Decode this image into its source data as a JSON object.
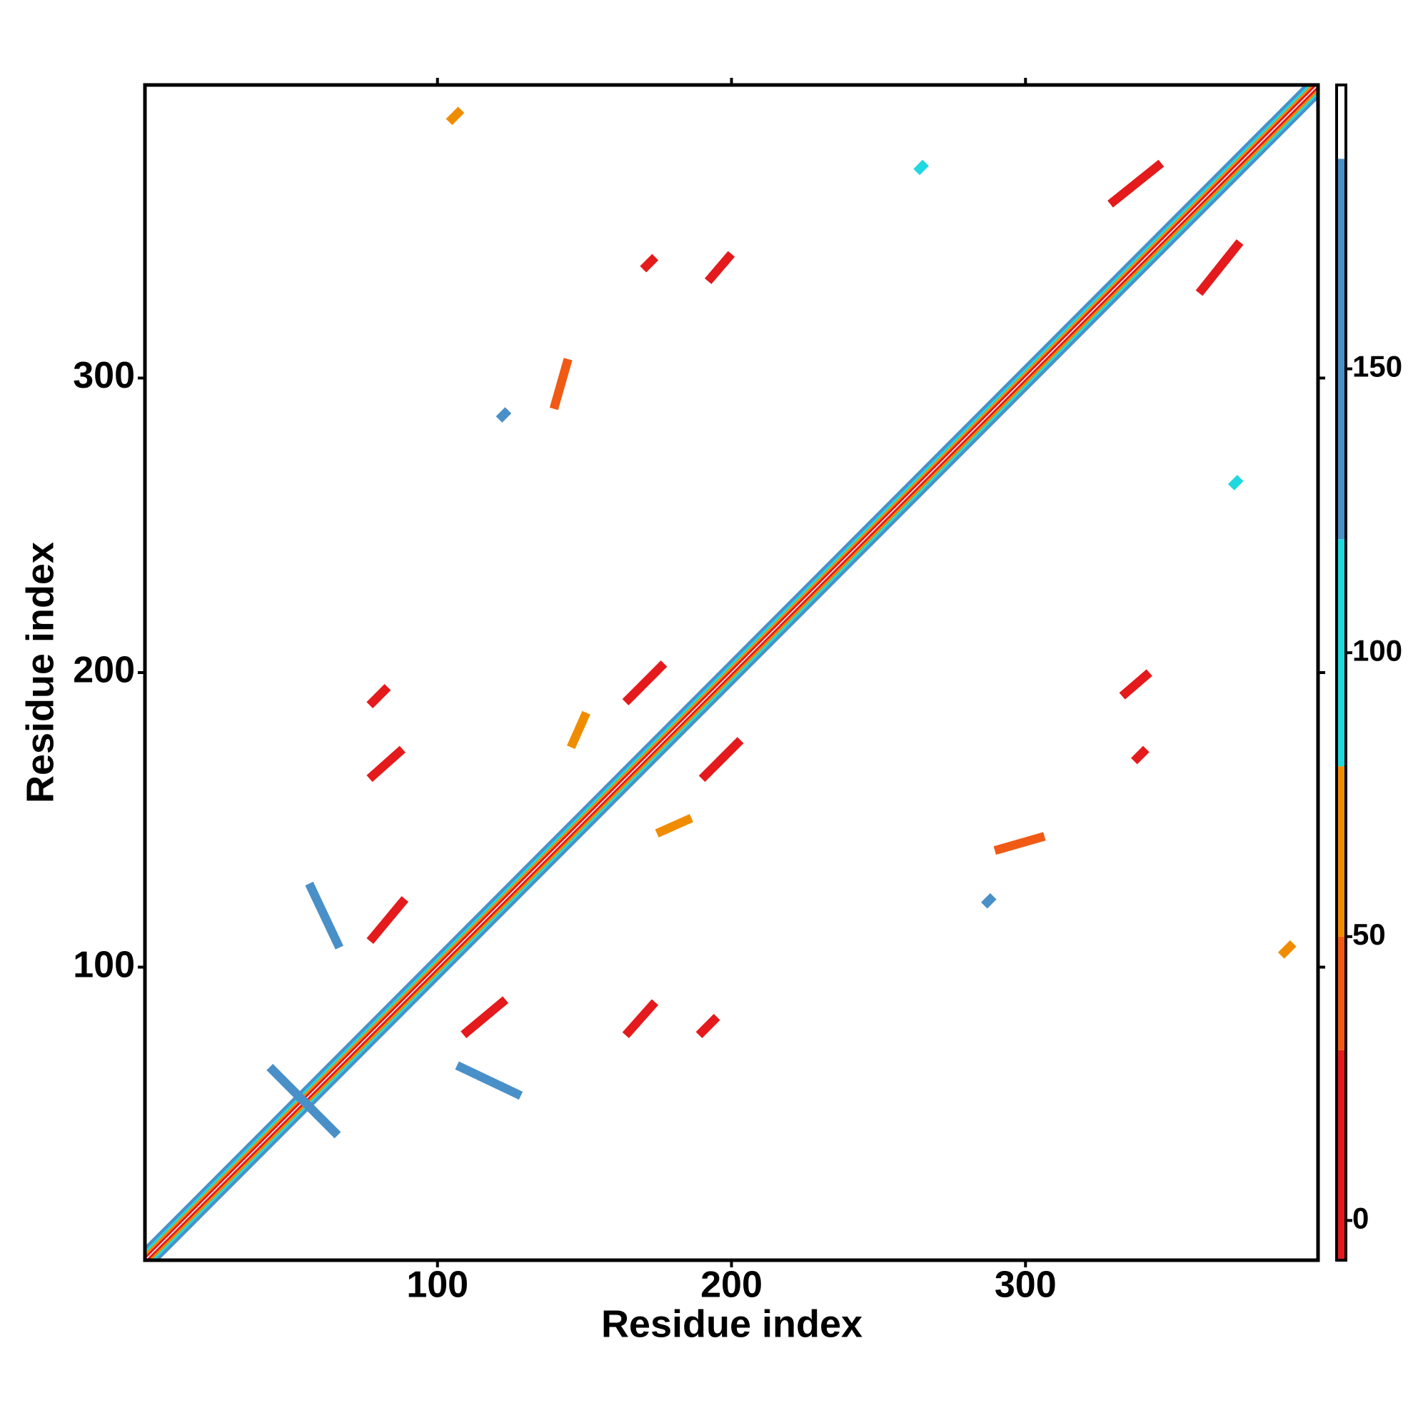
{
  "chart_data": {
    "type": "heatmap",
    "xlabel": "Residue index",
    "ylabel": "Residue index",
    "xlim": [
      0.5,
      399.5
    ],
    "ylim": [
      0.5,
      399.5
    ],
    "xticks": [
      100,
      200,
      300
    ],
    "yticks": [
      100,
      200,
      300
    ],
    "symmetric": true,
    "colorbar": {
      "lim": [
        -7,
        200
      ],
      "ticks": [
        0,
        50,
        100,
        150
      ],
      "bands": [
        {
          "from": -7,
          "to": 30,
          "color": "#e41a1c"
        },
        {
          "from": 30,
          "to": 50,
          "color": "#f05a14"
        },
        {
          "from": 50,
          "to": 80,
          "color": "#f08c00"
        },
        {
          "from": 80,
          "to": 120,
          "color": "#20d8e0"
        },
        {
          "from": 120,
          "to": 187,
          "color": "#4a90c8"
        },
        {
          "from": 187,
          "to": 200,
          "color": "#ffffff"
        }
      ]
    },
    "diagonal": [
      {
        "offset": 0,
        "value": 190
      },
      {
        "offset": 1,
        "value": 10
      },
      {
        "offset": 2,
        "value": 60
      },
      {
        "offset": 3,
        "value": 100
      },
      {
        "offset": 4,
        "value": 140
      }
    ],
    "contacts": [
      {
        "x": [
          44,
          65
        ],
        "y": [
          65,
          44
        ],
        "value": 150
      },
      {
        "x": [
          108,
          127
        ],
        "y": [
          66,
          57
        ],
        "value": 150
      },
      {
        "x": [
          110,
          122
        ],
        "y": [
          78,
          88
        ],
        "value": 10
      },
      {
        "x": [
          165,
          173
        ],
        "y": [
          78,
          87
        ],
        "value": 20
      },
      {
        "x": [
          190,
          194
        ],
        "y": [
          78,
          82
        ],
        "value": 10
      },
      {
        "x": [
          191,
          202
        ],
        "y": [
          165,
          176
        ],
        "value": 10
      },
      {
        "x": [
          176,
          185
        ],
        "y": [
          146,
          150
        ],
        "value": 60
      },
      {
        "x": [
          291,
          305
        ],
        "y": [
          140,
          144
        ],
        "value": 40
      },
      {
        "x": [
          334,
          341
        ],
        "y": [
          193,
          199
        ],
        "value": 10
      },
      {
        "x": [
          360,
          372
        ],
        "y": [
          330,
          345
        ],
        "value": 10
      },
      {
        "x": [
          371,
          372
        ],
        "y": [
          264,
          265
        ],
        "value": 100
      },
      {
        "x": [
          287,
          288
        ],
        "y": [
          122,
          123
        ],
        "value": 150
      },
      {
        "x": [
          388,
          390
        ],
        "y": [
          105,
          107
        ],
        "value": 60
      },
      {
        "x": [
          338,
          340
        ],
        "y": [
          171,
          173
        ],
        "value": 10
      }
    ]
  }
}
